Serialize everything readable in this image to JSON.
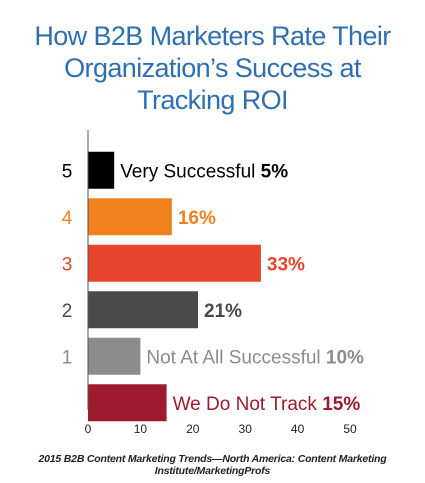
{
  "title_lines": [
    "How B2B Marketers Rate Their",
    "Organization’s Success at",
    "Tracking ROI"
  ],
  "source": "2015 B2B Content Marketing Trends—North America: Content Marketing Institute/MarketingProfs",
  "chart_data": {
    "type": "bar",
    "orientation": "horizontal",
    "title": "How B2B Marketers Rate Their Organization’s Success at Tracking ROI",
    "categories": [
      "5",
      "4",
      "3",
      "2",
      "1",
      ""
    ],
    "bar_texts": [
      "Very Successful",
      "",
      "",
      "",
      "Not At All Successful",
      "We Do Not Track"
    ],
    "value_labels": [
      "5%",
      "16%",
      "33%",
      "21%",
      "10%",
      "15%"
    ],
    "values": [
      5,
      16,
      33,
      21,
      10,
      15
    ],
    "colors": [
      "#000000",
      "#f0821e",
      "#e5452a",
      "#4a4a4a",
      "#8c8c8c",
      "#9e1a2e"
    ],
    "label_colors": [
      "#000000",
      "#f0821e",
      "#e5452a",
      "#4a4a4a",
      "#8c8c8c",
      "#9e1a2e"
    ],
    "label_text_colors": [
      "#000000",
      "#f0821e",
      "#e5452a",
      "#4a4a4a",
      "#8c8c8c",
      "#9e1a2e"
    ],
    "x_ticks": [
      0,
      10,
      20,
      30,
      40,
      50
    ],
    "xlim": [
      0,
      50
    ],
    "grid": false
  }
}
